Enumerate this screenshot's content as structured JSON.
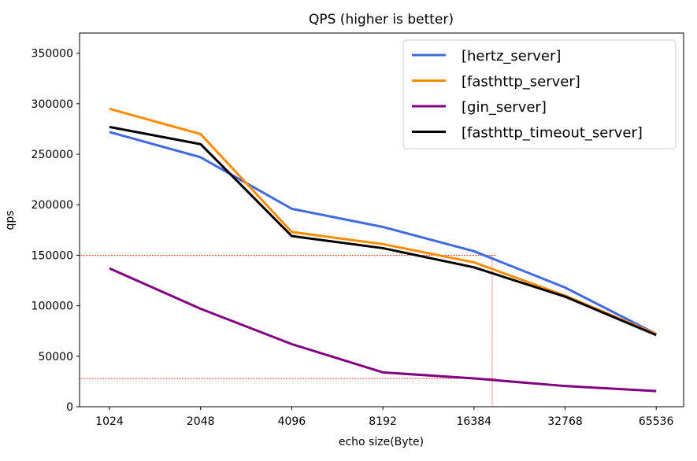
{
  "chart_data": {
    "type": "line",
    "title": "QPS (higher is better)",
    "xlabel": "echo size(Byte)",
    "ylabel": "qps",
    "categories": [
      "1024",
      "2048",
      "4096",
      "8192",
      "16384",
      "32768",
      "65536"
    ],
    "ylim": [
      0,
      370000
    ],
    "yticks": [
      0,
      50000,
      100000,
      150000,
      200000,
      250000,
      300000,
      350000
    ],
    "grid": false,
    "legend_position": "top-right",
    "series": [
      {
        "name": "[hertz_server]",
        "color": "#4169e1",
        "values": [
          272000,
          247000,
          196000,
          178000,
          154000,
          118000,
          72000
        ]
      },
      {
        "name": "[fasthttp_server]",
        "color": "#ff8c00",
        "values": [
          295000,
          270000,
          173000,
          161000,
          143000,
          110000,
          72000
        ]
      },
      {
        "name": "[gin_server]",
        "color": "#800080",
        "values": [
          137000,
          97000,
          62000,
          34000,
          28000,
          20500,
          15500
        ]
      },
      {
        "name": "[fasthttp_timeout_server]",
        "color": "#000000",
        "values": [
          277000,
          260000,
          169000,
          157000,
          138000,
          109000,
          71000
        ]
      }
    ],
    "reference_lines": {
      "color": "#ff0000",
      "horizontal_values": [
        150000,
        28000
      ],
      "vertical_x": "16384+"
    }
  }
}
